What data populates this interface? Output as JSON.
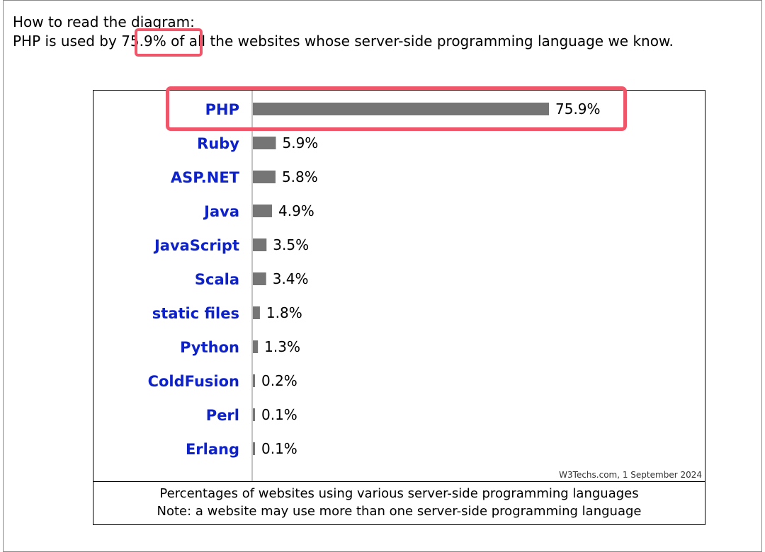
{
  "intro": {
    "heading": "How to read the diagram:",
    "sentence_before": "PHP is used by ",
    "highlight_value": "75.9%",
    "sentence_after": " of all the websites whose server-side programming language we know."
  },
  "chart_data": {
    "type": "bar",
    "orientation": "horizontal",
    "categories": [
      "PHP",
      "Ruby",
      "ASP.NET",
      "Java",
      "JavaScript",
      "Scala",
      "static files",
      "Python",
      "ColdFusion",
      "Perl",
      "Erlang"
    ],
    "values": [
      75.9,
      5.9,
      5.8,
      4.9,
      3.5,
      3.4,
      1.8,
      1.3,
      0.2,
      0.1,
      0.1
    ],
    "value_labels": [
      "75.9%",
      "5.9%",
      "5.8%",
      "4.9%",
      "3.5%",
      "3.4%",
      "1.8%",
      "1.3%",
      "0.2%",
      "0.1%",
      "0.1%"
    ],
    "unit": "%",
    "bar_color": "#757575",
    "label_color": "#0e22cc",
    "highlight_color": "#f0566a",
    "highlighted_category": "PHP",
    "source": "W3Techs.com, 1 September 2024",
    "caption_line1": "Percentages of websites using various server-side programming languages",
    "caption_line2": "Note: a website may use more than one server-side programming language"
  }
}
